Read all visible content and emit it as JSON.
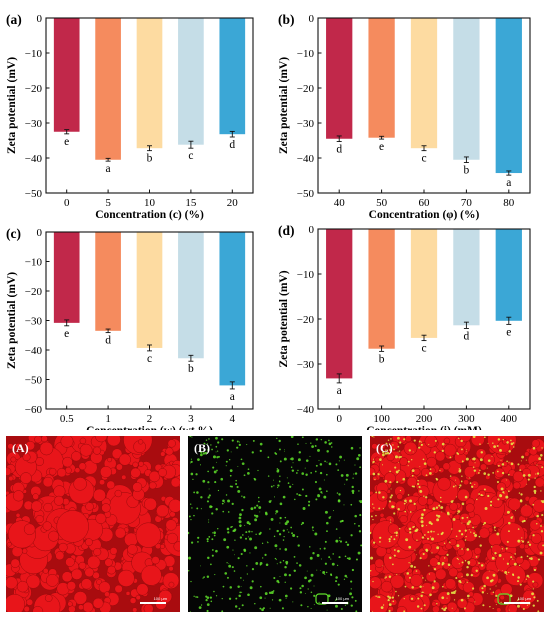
{
  "chart_data": [
    {
      "panel": "(a)",
      "type": "bar",
      "categories": [
        "0",
        "5",
        "10",
        "15",
        "20"
      ],
      "values": [
        -32.5,
        -40.5,
        -37.2,
        -36.2,
        -33.2
      ],
      "errors": [
        0.6,
        0.4,
        0.7,
        1.0,
        0.8
      ],
      "letters": [
        "e",
        "a",
        "b",
        "c",
        "d"
      ],
      "colors": [
        "#c1284a",
        "#f58b5e",
        "#fddba1",
        "#c5dde7",
        "#3ba7d6"
      ],
      "xlabel": "Concentration (c) (%)",
      "ylabel": "Zeta potential (mV)",
      "ylim": [
        -50,
        0
      ],
      "yticks": [
        0,
        -10,
        -20,
        -30,
        -40,
        -50
      ]
    },
    {
      "panel": "(b)",
      "type": "bar",
      "categories": [
        "40",
        "50",
        "60",
        "70",
        "80"
      ],
      "values": [
        -34.5,
        -34.2,
        -37.2,
        -40.5,
        -44.3
      ],
      "errors": [
        0.8,
        0.4,
        0.7,
        0.8,
        0.6
      ],
      "letters": [
        "d",
        "e",
        "c",
        "b",
        "a"
      ],
      "colors": [
        "#c1284a",
        "#f58b5e",
        "#fddba1",
        "#c5dde7",
        "#3ba7d6"
      ],
      "xlabel": "Concentration (φ) (%)",
      "ylabel": "Zeta potential (mV)",
      "ylim": [
        -50,
        0
      ],
      "yticks": [
        0,
        -10,
        -20,
        -30,
        -40,
        -50
      ]
    },
    {
      "panel": "(c)",
      "type": "bar",
      "categories": [
        "0.5",
        "1",
        "2",
        "3",
        "4"
      ],
      "values": [
        -30.8,
        -33.5,
        -39.3,
        -42.8,
        -52.0
      ],
      "errors": [
        1.0,
        0.6,
        1.0,
        1.0,
        1.2
      ],
      "letters": [
        "e",
        "d",
        "c",
        "b",
        "a"
      ],
      "colors": [
        "#c1284a",
        "#f58b5e",
        "#fddba1",
        "#c5dde7",
        "#3ba7d6"
      ],
      "xlabel": "Concentration (w) (wt %)",
      "ylabel": "Zeta potential (mV)",
      "ylim": [
        -60,
        0
      ],
      "yticks": [
        0,
        -10,
        -20,
        -30,
        -40,
        -50,
        -60
      ]
    },
    {
      "panel": "(d)",
      "type": "bar",
      "categories": [
        "0",
        "100",
        "200",
        "300",
        "400"
      ],
      "values": [
        -33.2,
        -26.6,
        -24.2,
        -21.4,
        -20.4
      ],
      "errors": [
        1.0,
        0.6,
        0.6,
        0.7,
        0.8
      ],
      "letters": [
        "a",
        "b",
        "c",
        "d",
        "e"
      ],
      "colors": [
        "#c1284a",
        "#f58b5e",
        "#fddba1",
        "#c5dde7",
        "#3ba7d6"
      ],
      "xlabel": "Concentration (i) (mM)",
      "ylabel": "Zeta potential (mV)",
      "ylim": [
        -40,
        0
      ],
      "yticks": [
        0,
        -10,
        -20,
        -30,
        -40
      ]
    }
  ],
  "micrographs": [
    {
      "label": "(A)",
      "scale": "100 μm"
    },
    {
      "label": "(B)",
      "scale": "100 μm"
    },
    {
      "label": "(C)",
      "scale": "100 μm"
    }
  ],
  "colors": {
    "red_phase": "#e8151a",
    "green_phase": "#5fe02a",
    "background": "#050505"
  }
}
